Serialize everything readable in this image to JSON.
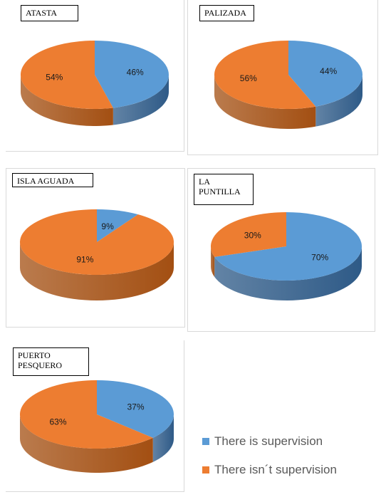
{
  "colors": {
    "supervision": "#5b9bd5",
    "no_supervision": "#ed7d31"
  },
  "legend": {
    "items": [
      {
        "label": "There is supervision",
        "color": "#5b9bd5"
      },
      {
        "label": "There isn´t supervision",
        "color": "#ed7d31"
      }
    ]
  },
  "chart_data": [
    {
      "type": "pie",
      "title": "ATASTA",
      "slices": [
        {
          "name": "There is supervision",
          "value": 46,
          "label": "46%"
        },
        {
          "name": "There isn´t supervision",
          "value": 54,
          "label": "54%"
        }
      ]
    },
    {
      "type": "pie",
      "title": "PALIZADA",
      "slices": [
        {
          "name": "There is supervision",
          "value": 44,
          "label": "44%"
        },
        {
          "name": "There isn´t supervision",
          "value": 56,
          "label": "56%"
        }
      ]
    },
    {
      "type": "pie",
      "title": "ISLA AGUADA",
      "slices": [
        {
          "name": "There is supervision",
          "value": 9,
          "label": "9%"
        },
        {
          "name": "There isn´t supervision",
          "value": 91,
          "label": "91%"
        }
      ]
    },
    {
      "type": "pie",
      "title_lines": [
        "LA",
        "PUNTILLA"
      ],
      "slices": [
        {
          "name": "There is supervision",
          "value": 70,
          "label": "70%"
        },
        {
          "name": "There isn´t supervision",
          "value": 30,
          "label": "30%"
        }
      ]
    },
    {
      "type": "pie",
      "title_lines": [
        "PUERTO",
        "PESQUERO"
      ],
      "slices": [
        {
          "name": "There is supervision",
          "value": 37,
          "label": "37%"
        },
        {
          "name": "There isn´t supervision",
          "value": 63,
          "label": "63%"
        }
      ]
    }
  ]
}
